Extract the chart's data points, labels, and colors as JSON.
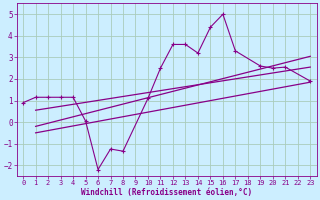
{
  "xlabel": "Windchill (Refroidissement éolien,°C)",
  "background_color": "#cceeff",
  "grid_color": "#aaccbb",
  "line_color": "#880088",
  "xlim": [
    -0.5,
    23.5
  ],
  "ylim": [
    -2.5,
    5.5
  ],
  "xticks": [
    0,
    1,
    2,
    3,
    4,
    5,
    6,
    7,
    8,
    9,
    10,
    11,
    12,
    13,
    14,
    15,
    16,
    17,
    18,
    19,
    20,
    21,
    22,
    23
  ],
  "yticks": [
    -2,
    -1,
    0,
    1,
    2,
    3,
    4,
    5
  ],
  "series1_x": [
    0,
    1,
    2,
    3,
    4,
    5,
    6,
    7,
    8,
    10,
    11,
    12,
    13,
    14,
    15,
    16,
    17,
    19,
    20,
    21,
    23
  ],
  "series1_y": [
    0.9,
    1.15,
    1.15,
    1.15,
    1.15,
    0.05,
    -2.2,
    -1.25,
    -1.35,
    1.1,
    2.5,
    3.6,
    3.6,
    3.2,
    4.4,
    5.0,
    3.3,
    2.6,
    2.5,
    2.55,
    1.9
  ],
  "series2_x": [
    1,
    23
  ],
  "series2_y": [
    -0.5,
    1.85
  ],
  "series3_x": [
    1,
    23
  ],
  "series3_y": [
    -0.2,
    3.05
  ],
  "series4_x": [
    1,
    23
  ],
  "series4_y": [
    0.55,
    2.55
  ]
}
